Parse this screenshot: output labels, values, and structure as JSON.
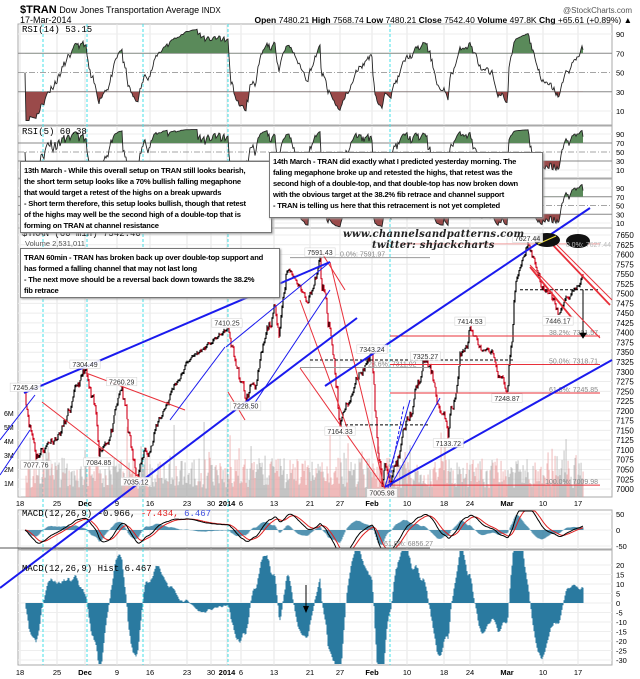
{
  "header": {
    "symbol": "$TRAN",
    "name": "Dow Jones Transportation Average",
    "exchange": "INDX",
    "date": "17-Mar-2014",
    "credit": "@StockCharts.com",
    "open_label": "Open",
    "open": "7480.21",
    "high_label": "High",
    "high": "7568.74",
    "low_label": "Low",
    "low": "7480.21",
    "close_label": "Close",
    "close": "7542.40",
    "volume_label": "Volume",
    "volume": "497.8K",
    "chg_label": "Chg",
    "chg": "+65.61 (+0.89%) ▲"
  },
  "panels": {
    "rsi14_label": "RSI(14) 53.15",
    "rsi5_label": "RSI(5) 60.38",
    "price_label": "$TRAN (60 min) 7542.40",
    "volume_label": "Volume 2,531,011",
    "macd_name": "MACD(12,26,9)",
    "macd_v1": "-0.966,",
    "macd_v2": "-7.434,",
    "macd_v3": "6.467",
    "hist_label": "MACD(12,26,9) Hist 6.467"
  },
  "annotations": {
    "box_13mar": [
      "13th March - While this overall setup on TRAN still looks bearish,",
      "the short term setup looks like a 70% bullish falling megaphone",
      "that would target a retest of the highs on a break upwards",
      "- Short term therefore, this setup looks bullish, though that retest",
      "of the highs may well be the second high of a double-top that is",
      "forming on TRAN at channel resistance"
    ],
    "box_14mar": [
      "14th March - TRAN did exactly what I predicted yesterday morning. The",
      "faling megaphone broke up and retested the highs, that retest was the",
      "second high of a double-top, and that double-top has now broken down",
      "with the obvious target at the 38.2% fib retrace and channel support",
      "- TRAN is telling us here that this retracement is not yet completed"
    ],
    "box_60min": [
      "TRAN 60min - TRAN has broken back up over double-top support and",
      "has formed a falling channel that may not last long",
      "- The next move should be a reversal back down towards the 38.2%",
      "fib retrace"
    ]
  },
  "watermark": {
    "site": "www.channelsandpatterns.com",
    "twitter": "twitter: shjackcharts"
  },
  "chart_data": {
    "type": "line",
    "title": "$TRAN Dow Jones Transportation Average INDX",
    "interval": "60 min",
    "x_ticks": [
      "18",
      "25",
      "Dec",
      "9",
      "16",
      "23",
      "30",
      "2014",
      "6",
      "13",
      "21",
      "27",
      "Feb",
      "10",
      "18",
      "24",
      "Mar",
      "10",
      "17"
    ],
    "price_ticks": [
      7650,
      7625,
      7600,
      7575,
      7550,
      7525,
      7500,
      7475,
      7450,
      7425,
      7400,
      7375,
      7350,
      7325,
      7300,
      7275,
      7250,
      7225,
      7200,
      7175,
      7150,
      7125,
      7100,
      7075,
      7050,
      7025,
      7000
    ],
    "price_range": [
      7000,
      7650
    ],
    "volume_ticks": [
      "1M",
      "2M",
      "3M",
      "4M",
      "5M",
      "6M"
    ],
    "rsi_ticks": [
      90,
      70,
      50,
      30,
      10
    ],
    "macd_ticks": [
      50,
      0,
      -50
    ],
    "hist_ticks": [
      20,
      15,
      10,
      5,
      0,
      -5,
      -10,
      -15,
      -20,
      -25,
      -30
    ],
    "swings": [
      {
        "date": "2013-11-19",
        "price": 7245.43,
        "label": "7245.43",
        "kind": "high"
      },
      {
        "date": "2013-11-21",
        "price": 7077.76,
        "label": "7077.76",
        "kind": "low"
      },
      {
        "date": "2013-12-02",
        "price": 7304.49,
        "label": "7304.49",
        "kind": "high"
      },
      {
        "date": "2013-12-05",
        "price": 7084.85,
        "label": "7084.85",
        "kind": "low"
      },
      {
        "date": "2013-12-10",
        "price": 7260.29,
        "label": "7260.29",
        "kind": "high"
      },
      {
        "date": "2013-12-13",
        "price": 7035.12,
        "label": "7035.12",
        "kind": "low"
      },
      {
        "date": "2013-12-20",
        "price": 7250,
        "label": "",
        "kind": ""
      },
      {
        "date": "2013-12-24",
        "price": 7330,
        "label": "",
        "kind": ""
      },
      {
        "date": "2014-01-02",
        "price": 7410.25,
        "label": "7410.25",
        "kind": "high"
      },
      {
        "date": "2014-01-07",
        "price": 7228.5,
        "label": "7228.50",
        "kind": "low"
      },
      {
        "date": "2014-01-13",
        "price": 7470,
        "label": "",
        "kind": ""
      },
      {
        "date": "2014-01-14",
        "price": 7390,
        "label": "",
        "kind": ""
      },
      {
        "date": "2014-01-16",
        "price": 7560,
        "label": "",
        "kind": ""
      },
      {
        "date": "2014-01-20",
        "price": 7480,
        "label": "",
        "kind": ""
      },
      {
        "date": "2014-01-23",
        "price": 7591.43,
        "label": "7591.43",
        "kind": "high"
      },
      {
        "date": "2014-01-27",
        "price": 7164.33,
        "label": "7164.33",
        "kind": "low"
      },
      {
        "date": "2014-02-03",
        "price": 7343.24,
        "label": "7343.24",
        "kind": "high"
      },
      {
        "date": "2014-02-05",
        "price": 7005.98,
        "label": "7005.98",
        "kind": "low"
      },
      {
        "date": "2014-02-14",
        "price": 7325.27,
        "label": "7325.27",
        "kind": "high"
      },
      {
        "date": "2014-02-19",
        "price": 7133.72,
        "label": "7133.72",
        "kind": "low"
      },
      {
        "date": "2014-02-24",
        "price": 7414.53,
        "label": "7414.53",
        "kind": "high"
      },
      {
        "date": "2014-03-03",
        "price": 7248.87,
        "label": "7248.87",
        "kind": "low"
      },
      {
        "date": "2014-03-05",
        "price": 7540,
        "label": "",
        "kind": ""
      },
      {
        "date": "2014-03-07",
        "price": 7627.44,
        "label": "7627.44",
        "kind": "high"
      },
      {
        "date": "2014-03-13",
        "price": 7446.17,
        "label": "7446.17",
        "kind": "low"
      },
      {
        "date": "2014-03-18",
        "price": 7542.4,
        "label": "",
        "kind": ""
      }
    ],
    "fib_levels_left": [
      {
        "price": 7591.97,
        "label": "0.0%: 7591.97"
      },
      {
        "price": 7311.02,
        "label": "23.6%: 7311.02"
      },
      {
        "price": 6856.27,
        "label": "61.8%: 6856.27"
      }
    ],
    "fib_levels_right": [
      {
        "price": 7627.44,
        "label": "0.0%: 7627.44"
      },
      {
        "price": 7391.57,
        "label": "38.2%: 7391.57"
      },
      {
        "price": 7318.71,
        "label": "50.0%: 7318.71"
      },
      {
        "price": 7245.85,
        "label": "61.8%: 7245.85"
      },
      {
        "price": 7009.98,
        "label": "100.0%: 7009.98"
      }
    ],
    "colors": {
      "up": "#000000",
      "down": "#d0021b",
      "trendline": "#1a1aee",
      "fib": "#e8303a",
      "rsi_overbought": "#5a8a5a",
      "rsi_oversold": "#9a4a4a",
      "macd": "#000000",
      "signal": "#e02020",
      "hist": "#2a7aa0",
      "marker": "#33dddd"
    },
    "grid": true
  }
}
